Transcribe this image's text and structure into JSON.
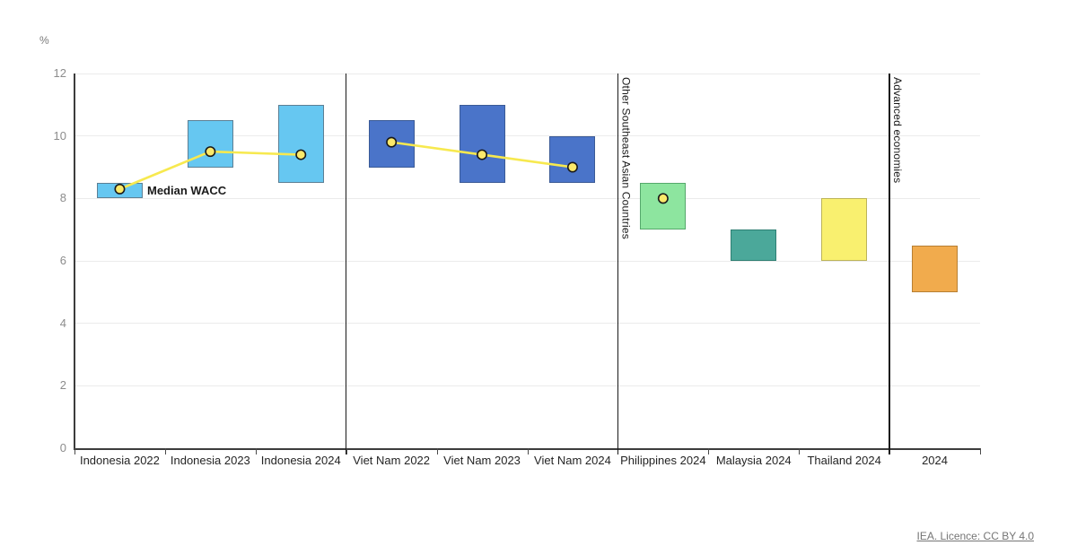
{
  "chart_data": {
    "type": "bar",
    "subtype": "floating-range-bars-with-median-points",
    "unit_label": "%",
    "ylim": [
      0,
      12
    ],
    "yticks": [
      0,
      2,
      4,
      6,
      8,
      10,
      12
    ],
    "grid": "horizontal",
    "legend_position": "inline-annotation",
    "median_annotation_label": "Median WACC",
    "categories": [
      "Indonesia 2022",
      "Indonesia 2023",
      "Indonesia 2024",
      "Viet Nam 2022",
      "Viet Nam 2023",
      "Viet Nam 2024",
      "Philippines 2024",
      "Malaysia 2024",
      "Thailand 2024",
      "2024"
    ],
    "bars": [
      {
        "category": "Indonesia 2022",
        "low": 8.0,
        "high": 8.5,
        "median": 8.3,
        "fill": "#66C7F1",
        "border": "#5C7F94"
      },
      {
        "category": "Indonesia 2023",
        "low": 9.0,
        "high": 10.5,
        "median": 9.5,
        "fill": "#66C7F1",
        "border": "#5C7F94"
      },
      {
        "category": "Indonesia 2024",
        "low": 8.5,
        "high": 11.0,
        "median": 9.4,
        "fill": "#66C7F1",
        "border": "#5C7F94"
      },
      {
        "category": "Viet Nam 2022",
        "low": 9.0,
        "high": 10.5,
        "median": 9.8,
        "fill": "#4A74C9",
        "border": "#3A5A96"
      },
      {
        "category": "Viet Nam 2023",
        "low": 8.5,
        "high": 11.0,
        "median": 9.4,
        "fill": "#4A74C9",
        "border": "#3A5A96"
      },
      {
        "category": "Viet Nam 2024",
        "low": 8.5,
        "high": 10.0,
        "median": 9.0,
        "fill": "#4A74C9",
        "border": "#3A5A96"
      },
      {
        "category": "Philippines 2024",
        "low": 7.0,
        "high": 8.5,
        "median": 8.0,
        "fill": "#8DE59F",
        "border": "#55A86B"
      },
      {
        "category": "Malaysia 2024",
        "low": 6.0,
        "high": 7.0,
        "median": null,
        "fill": "#4BA89A",
        "border": "#2E7F73"
      },
      {
        "category": "Thailand 2024",
        "low": 6.0,
        "high": 8.0,
        "median": null,
        "fill": "#F9F06F",
        "border": "#BDB458"
      },
      {
        "category": "2024",
        "low": 5.0,
        "high": 6.5,
        "median": null,
        "fill": "#F1AB4D",
        "border": "#B77F33"
      }
    ],
    "median_groups": [
      [
        0,
        1,
        2
      ],
      [
        3,
        4,
        5
      ],
      [
        6
      ]
    ],
    "separators": [
      {
        "boundary_index": 3,
        "label": ""
      },
      {
        "boundary_index": 6,
        "label": "Other Southeast Asian Countries"
      },
      {
        "boundary_index": 9,
        "label": "Advanced economies"
      }
    ],
    "colors": {
      "median_line": "#F7E94F",
      "median_dot_fill": "#FBE96B",
      "median_dot_stroke": "#1A1A1A",
      "gridline": "#EBEBEB",
      "axis": "#3C3C3C",
      "separator": "#1A1A1A",
      "x_label": "#242424",
      "y_label": "#8C8C8C"
    },
    "source_label": "IEA. Licence: CC BY 4.0"
  }
}
